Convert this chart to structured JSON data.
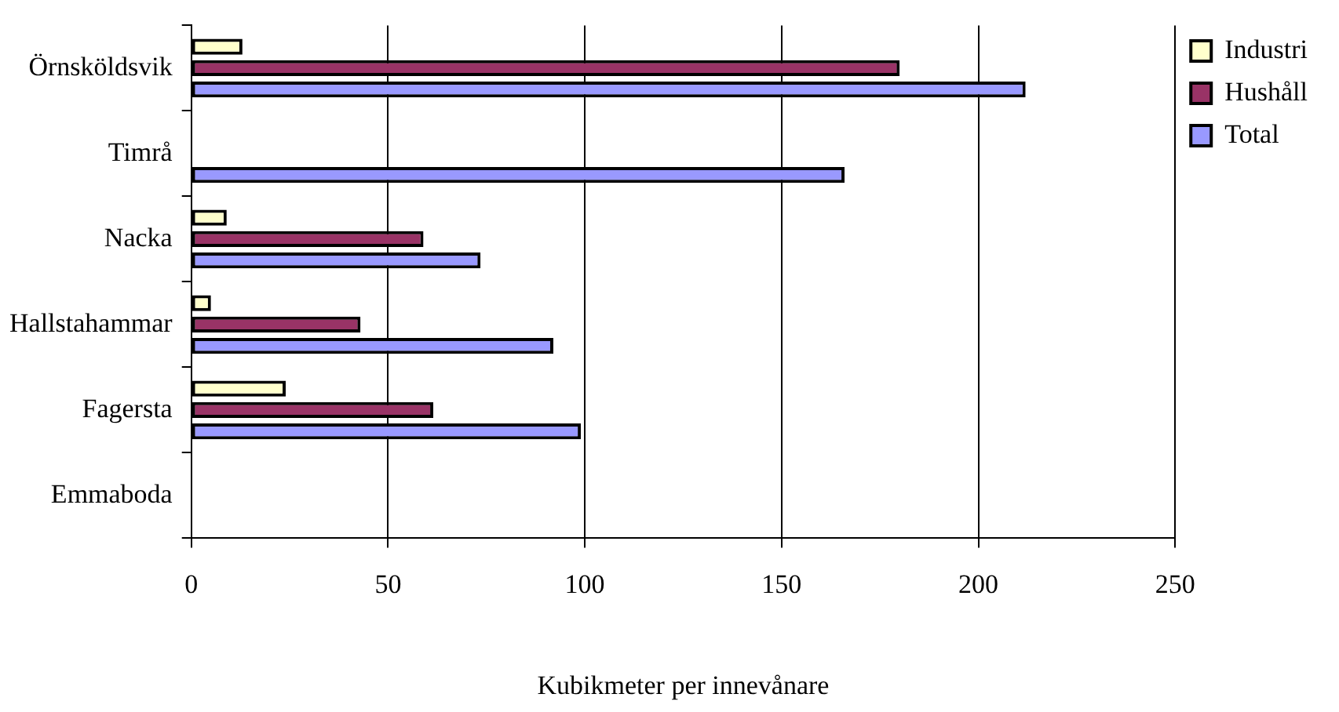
{
  "chart_data": {
    "type": "bar",
    "orientation": "horizontal",
    "xlabel": "Kubikmeter per innevånare",
    "categories": [
      "Örnsköldsvik",
      "Timrå",
      "Nacka",
      "Hallstahammar",
      "Fagersta",
      "Emmaboda"
    ],
    "series": [
      {
        "name": "Industri",
        "color": "#ffffcc",
        "values": [
          13,
          null,
          9,
          5,
          24,
          null
        ]
      },
      {
        "name": "Hushåll",
        "color": "#993366",
        "values": [
          180,
          null,
          59,
          43,
          61.5,
          null
        ]
      },
      {
        "name": "Total",
        "color": "#9999ff",
        "values": [
          212,
          166,
          73.5,
          92,
          99,
          null
        ]
      }
    ],
    "xlim": [
      0,
      250
    ],
    "xticks": [
      0,
      50,
      100,
      150,
      200,
      250
    ],
    "grid": "x",
    "legend": "right"
  }
}
